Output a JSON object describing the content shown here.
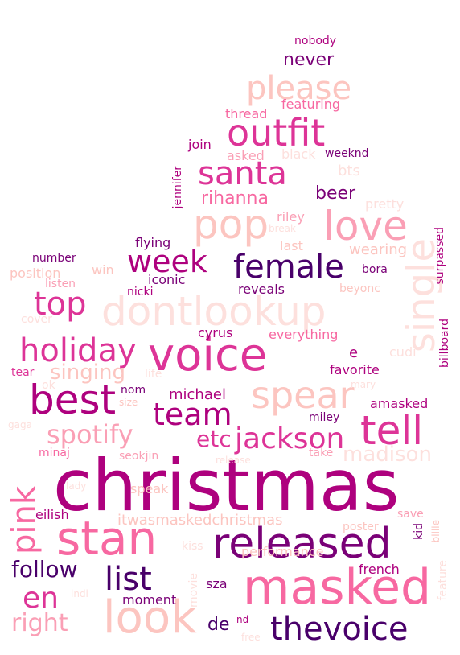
{
  "cloud": {
    "words": [
      {
        "text": "christmas",
        "color": "#ae017e"
      },
      {
        "text": "masked",
        "color": "#f768a1"
      },
      {
        "text": "dontlookup",
        "color": "#fde0dd"
      },
      {
        "text": "voice",
        "color": "#dd3497"
      },
      {
        "text": "look",
        "color": "#fcc5c0"
      },
      {
        "text": "stan",
        "color": "#f768a1"
      },
      {
        "text": "released",
        "color": "#7a0177"
      },
      {
        "text": "best",
        "color": "#ae017e"
      },
      {
        "text": "spear",
        "color": "#fcc5c0"
      },
      {
        "text": "tell",
        "color": "#dd3497"
      },
      {
        "text": "pop",
        "color": "#fcc5c0"
      },
      {
        "text": "love",
        "color": "#fa9fb5"
      },
      {
        "text": "single",
        "color": "#fde0dd"
      },
      {
        "text": "outfit",
        "color": "#dd3497"
      },
      {
        "text": "please",
        "color": "#fcc5c0"
      },
      {
        "text": "santa",
        "color": "#dd3497"
      },
      {
        "text": "female",
        "color": "#49006a"
      },
      {
        "text": "week",
        "color": "#ae017e"
      },
      {
        "text": "holiday",
        "color": "#dd3497"
      },
      {
        "text": "top",
        "color": "#dd3497"
      },
      {
        "text": "team",
        "color": "#ae017e"
      },
      {
        "text": "jackson",
        "color": "#dd3497"
      },
      {
        "text": "list",
        "color": "#49006a"
      },
      {
        "text": "thevoice",
        "color": "#49006a"
      },
      {
        "text": "pink",
        "color": "#f768a1"
      },
      {
        "text": "en",
        "color": "#dd3497"
      },
      {
        "text": "right",
        "color": "#fa9fb5"
      },
      {
        "text": "follow",
        "color": "#49006a"
      },
      {
        "text": "spotify",
        "color": "#fa9fb5"
      },
      {
        "text": "etc",
        "color": "#dd3497"
      },
      {
        "text": "singing",
        "color": "#fcc5c0"
      },
      {
        "text": "madison",
        "color": "#fde0dd"
      },
      {
        "text": "rihanna",
        "color": "#f768a1"
      },
      {
        "text": "beer",
        "color": "#7a0177"
      },
      {
        "text": "never",
        "color": "#7a0177"
      },
      {
        "text": "michael",
        "color": "#ae017e"
      },
      {
        "text": "itwasmaskedchristmas",
        "color": "#fcc5c0"
      },
      {
        "text": "de",
        "color": "#49006a"
      },
      {
        "text": "nd",
        "color": "#ae017e"
      },
      {
        "text": "featuring",
        "color": "#f768a1"
      },
      {
        "text": "thread",
        "color": "#f768a1"
      },
      {
        "text": "join",
        "color": "#ae017e"
      },
      {
        "text": "asked",
        "color": "#fa9fb5"
      },
      {
        "text": "black",
        "color": "#fde0dd"
      },
      {
        "text": "weeknd",
        "color": "#7a0177"
      },
      {
        "text": "bts",
        "color": "#fde0dd"
      },
      {
        "text": "pretty",
        "color": "#fde0dd"
      },
      {
        "text": "riley",
        "color": "#fa9fb5"
      },
      {
        "text": "break",
        "color": "#fde0dd"
      },
      {
        "text": "flying",
        "color": "#7a0177"
      },
      {
        "text": "last",
        "color": "#fcc5c0"
      },
      {
        "text": "wearing",
        "color": "#fcc5c0"
      },
      {
        "text": "surpassed",
        "color": "#ae017e"
      },
      {
        "text": "number",
        "color": "#7a0177"
      },
      {
        "text": "position",
        "color": "#fcc5c0"
      },
      {
        "text": "win",
        "color": "#fcc5c0"
      },
      {
        "text": "listen",
        "color": "#fa9fb5"
      },
      {
        "text": "nicki",
        "color": "#ae017e"
      },
      {
        "text": "iconic",
        "color": "#7a0177"
      },
      {
        "text": "reveals",
        "color": "#7a0177"
      },
      {
        "text": "bora",
        "color": "#7a0177"
      },
      {
        "text": "beyonc",
        "color": "#fcc5c0"
      },
      {
        "text": "cover",
        "color": "#fde0dd"
      },
      {
        "text": "billboard",
        "color": "#ae017e"
      },
      {
        "text": "cyrus",
        "color": "#ae017e"
      },
      {
        "text": "everything",
        "color": "#f768a1"
      },
      {
        "text": "e",
        "color": "#ae017e"
      },
      {
        "text": "cudi",
        "color": "#fde0dd"
      },
      {
        "text": "tear",
        "color": "#dd3497"
      },
      {
        "text": "life",
        "color": "#fde0dd"
      },
      {
        "text": "favorite",
        "color": "#ae017e"
      },
      {
        "text": "ok",
        "color": "#fde0dd"
      },
      {
        "text": "mary",
        "color": "#fde0dd"
      },
      {
        "text": "nom",
        "color": "#7a0177"
      },
      {
        "text": "size",
        "color": "#fcc5c0"
      },
      {
        "text": "amasked",
        "color": "#ae017e"
      },
      {
        "text": "gaga",
        "color": "#fde0dd"
      },
      {
        "text": "miley",
        "color": "#7a0177"
      },
      {
        "text": "minaj",
        "color": "#f768a1"
      },
      {
        "text": "seokjin",
        "color": "#fa9fb5"
      },
      {
        "text": "take",
        "color": "#fa9fb5"
      },
      {
        "text": "release",
        "color": "#fde0dd"
      },
      {
        "text": "lady",
        "color": "#fde0dd"
      },
      {
        "text": "speak",
        "color": "#fcc5c0"
      },
      {
        "text": "eilish",
        "color": "#ae017e"
      },
      {
        "text": "save",
        "color": "#fa9fb5"
      },
      {
        "text": "poster",
        "color": "#fcc5c0"
      },
      {
        "text": "kid",
        "color": "#7a0177"
      },
      {
        "text": "billie",
        "color": "#fcc5c0"
      },
      {
        "text": "kiss",
        "color": "#fde0dd"
      },
      {
        "text": "performance",
        "color": "#fcc5c0"
      },
      {
        "text": "french",
        "color": "#ae017e"
      },
      {
        "text": "movie",
        "color": "#fde0dd"
      },
      {
        "text": "moment",
        "color": "#7a0177"
      },
      {
        "text": "sza",
        "color": "#7a0177"
      },
      {
        "text": "feature",
        "color": "#fde0dd"
      },
      {
        "text": "indi",
        "color": "#fde0dd"
      },
      {
        "text": "free",
        "color": "#fde0dd"
      },
      {
        "text": "nobody",
        "color": "#ae017e"
      },
      {
        "text": "jennifer",
        "color": "#ae017e"
      }
    ]
  }
}
